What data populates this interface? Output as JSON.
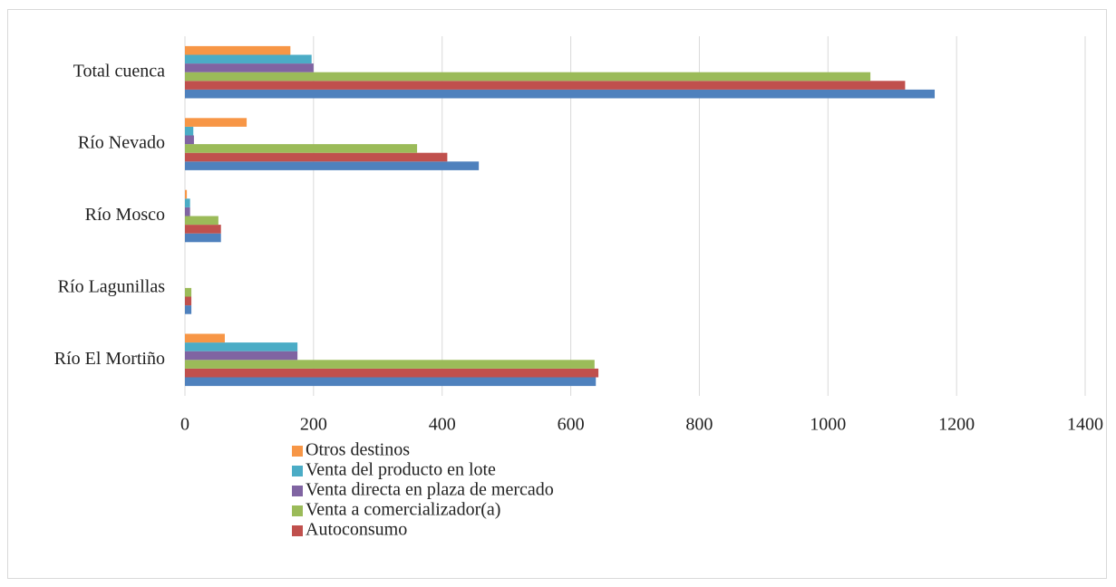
{
  "chart_data": {
    "type": "bar",
    "orientation": "horizontal",
    "categories": [
      "Total cuenca",
      "Río Nevado",
      "Río Mosco",
      "Río Lagunillas",
      "Río El Mortiño"
    ],
    "series": [
      {
        "color": "#4f81bd",
        "values": [
          1166,
          457,
          56,
          10,
          639
        ]
      },
      {
        "name": "Autoconsumo",
        "color": "#c0504d",
        "values": [
          1120,
          408,
          56,
          10,
          643
        ]
      },
      {
        "name": "Venta a comercializador(a)",
        "color": "#9bbb59",
        "values": [
          1066,
          361,
          52,
          10,
          637
        ]
      },
      {
        "name": "Venta directa en plaza de mercado",
        "color": "#8064a2",
        "values": [
          200,
          14,
          8,
          0,
          175
        ]
      },
      {
        "name": "Venta del producto en lote",
        "color": "#4bacc6",
        "values": [
          197,
          13,
          8,
          0,
          175
        ]
      },
      {
        "name": "Otros destinos",
        "color": "#f79646",
        "values": [
          164,
          96,
          3,
          0,
          62
        ]
      }
    ],
    "xlim": [
      0,
      1400
    ],
    "xticks": [
      0,
      200,
      400,
      600,
      800,
      1000,
      1200,
      1400
    ],
    "grid": true
  }
}
